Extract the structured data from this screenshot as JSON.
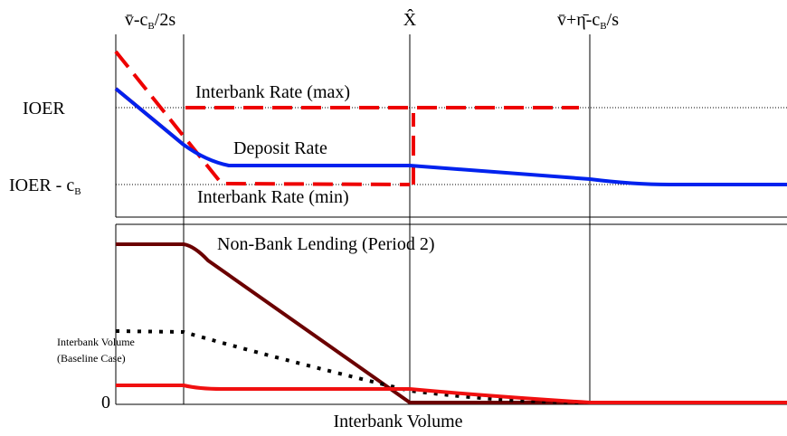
{
  "top_labels": [
    {
      "parts": [
        "v̄-c",
        "B",
        "/2s"
      ]
    },
    {
      "parts": [
        "X̂"
      ]
    },
    {
      "parts": [
        "v̄+η̄-c",
        "B",
        "/s"
      ]
    }
  ],
  "y_labels": {
    "ioer": "IOER",
    "ioer_minus": {
      "parts": [
        "IOER - c",
        "B"
      ]
    },
    "zero": "0"
  },
  "curve_labels": {
    "rate_max": "Interbank Rate (max)",
    "deposit": "Deposit Rate",
    "rate_min": "Interbank Rate (min)",
    "nonbank": "Non-Bank Lending (Period 2)",
    "volume_baseline": [
      "Interbank Volume",
      "(Baseline Case)"
    ]
  },
  "x_label": "Interbank Volume"
}
